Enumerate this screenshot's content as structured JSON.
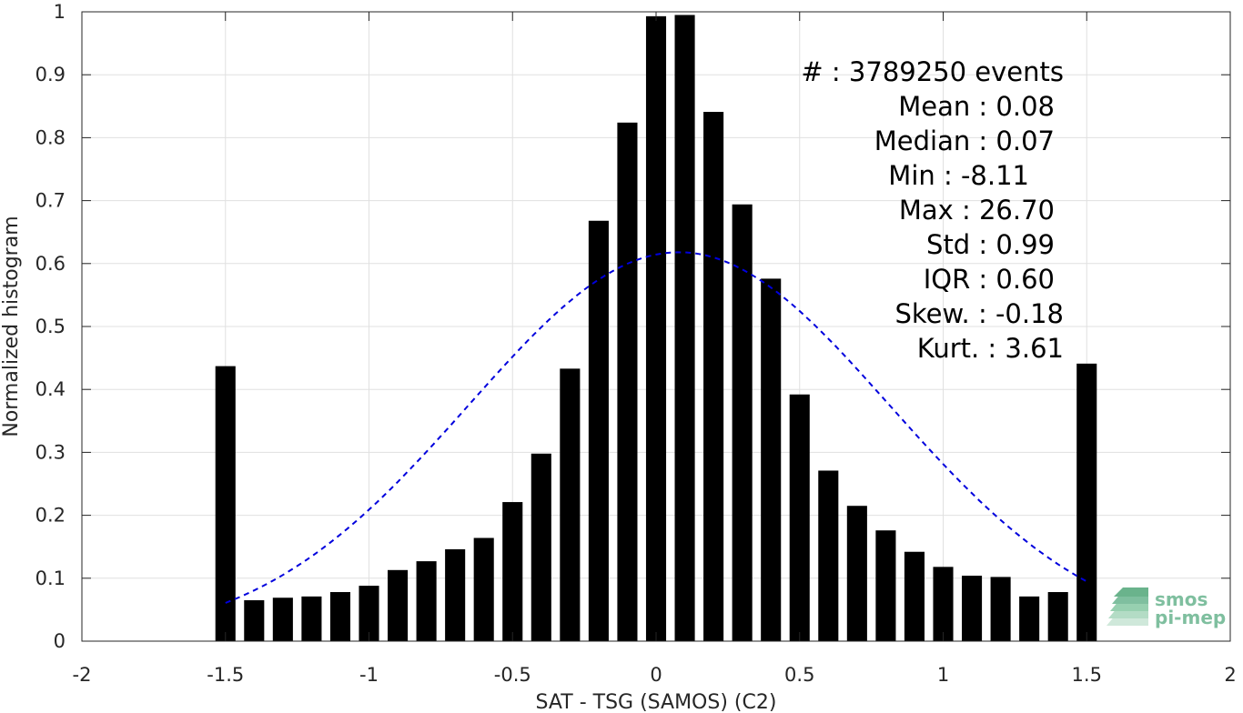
{
  "chart_data": {
    "type": "bar",
    "xlabel": "SAT - TSG (SAMOS) (C2)",
    "ylabel": "Normalized histogram",
    "xlim": [
      -2,
      2
    ],
    "ylim": [
      0,
      1
    ],
    "grid": true,
    "x_ticks": [
      "-2",
      "-1.5",
      "-1",
      "-0.5",
      "0",
      "0.5",
      "1",
      "1.5",
      "2"
    ],
    "y_ticks": [
      "0",
      "0.1",
      "0.2",
      "0.3",
      "0.4",
      "0.5",
      "0.6",
      "0.7",
      "0.8",
      "0.9",
      "1"
    ],
    "bar_width": 0.07,
    "x": [
      -1.5,
      -1.4,
      -1.3,
      -1.2,
      -1.1,
      -1.0,
      -0.9,
      -0.8,
      -0.7,
      -0.6,
      -0.5,
      -0.4,
      -0.3,
      -0.2,
      -0.1,
      0.0,
      0.1,
      0.2,
      0.3,
      0.4,
      0.5,
      0.6,
      0.7,
      0.8,
      0.9,
      1.0,
      1.1,
      1.2,
      1.3,
      1.4,
      1.5
    ],
    "values": [
      0.437,
      0.065,
      0.069,
      0.071,
      0.078,
      0.088,
      0.113,
      0.127,
      0.146,
      0.164,
      0.221,
      0.298,
      0.433,
      0.668,
      0.824,
      0.993,
      0.995,
      0.841,
      0.694,
      0.576,
      0.392,
      0.271,
      0.215,
      0.176,
      0.142,
      0.118,
      0.104,
      0.102,
      0.071,
      0.078,
      0.441
    ],
    "bar_color": "#000000",
    "fit_curve": {
      "style": "dashed",
      "color": "#0000dd",
      "mean": 0.08,
      "std": 0.99,
      "peak": 0.618,
      "x_range": [
        -1.5,
        1.5
      ]
    },
    "stats": [
      "#  : 3789250 events",
      "Mean : 0.08",
      "Median : 0.07",
      "Min : -8.11",
      "Max : 26.70",
      "Std : 0.99",
      "IQR : 0.60",
      "Skew. : -0.18",
      "Kurt. : 3.61"
    ]
  },
  "logo": {
    "line1": "smos",
    "line2": "pi-mep",
    "color": "#7fbf9f"
  }
}
